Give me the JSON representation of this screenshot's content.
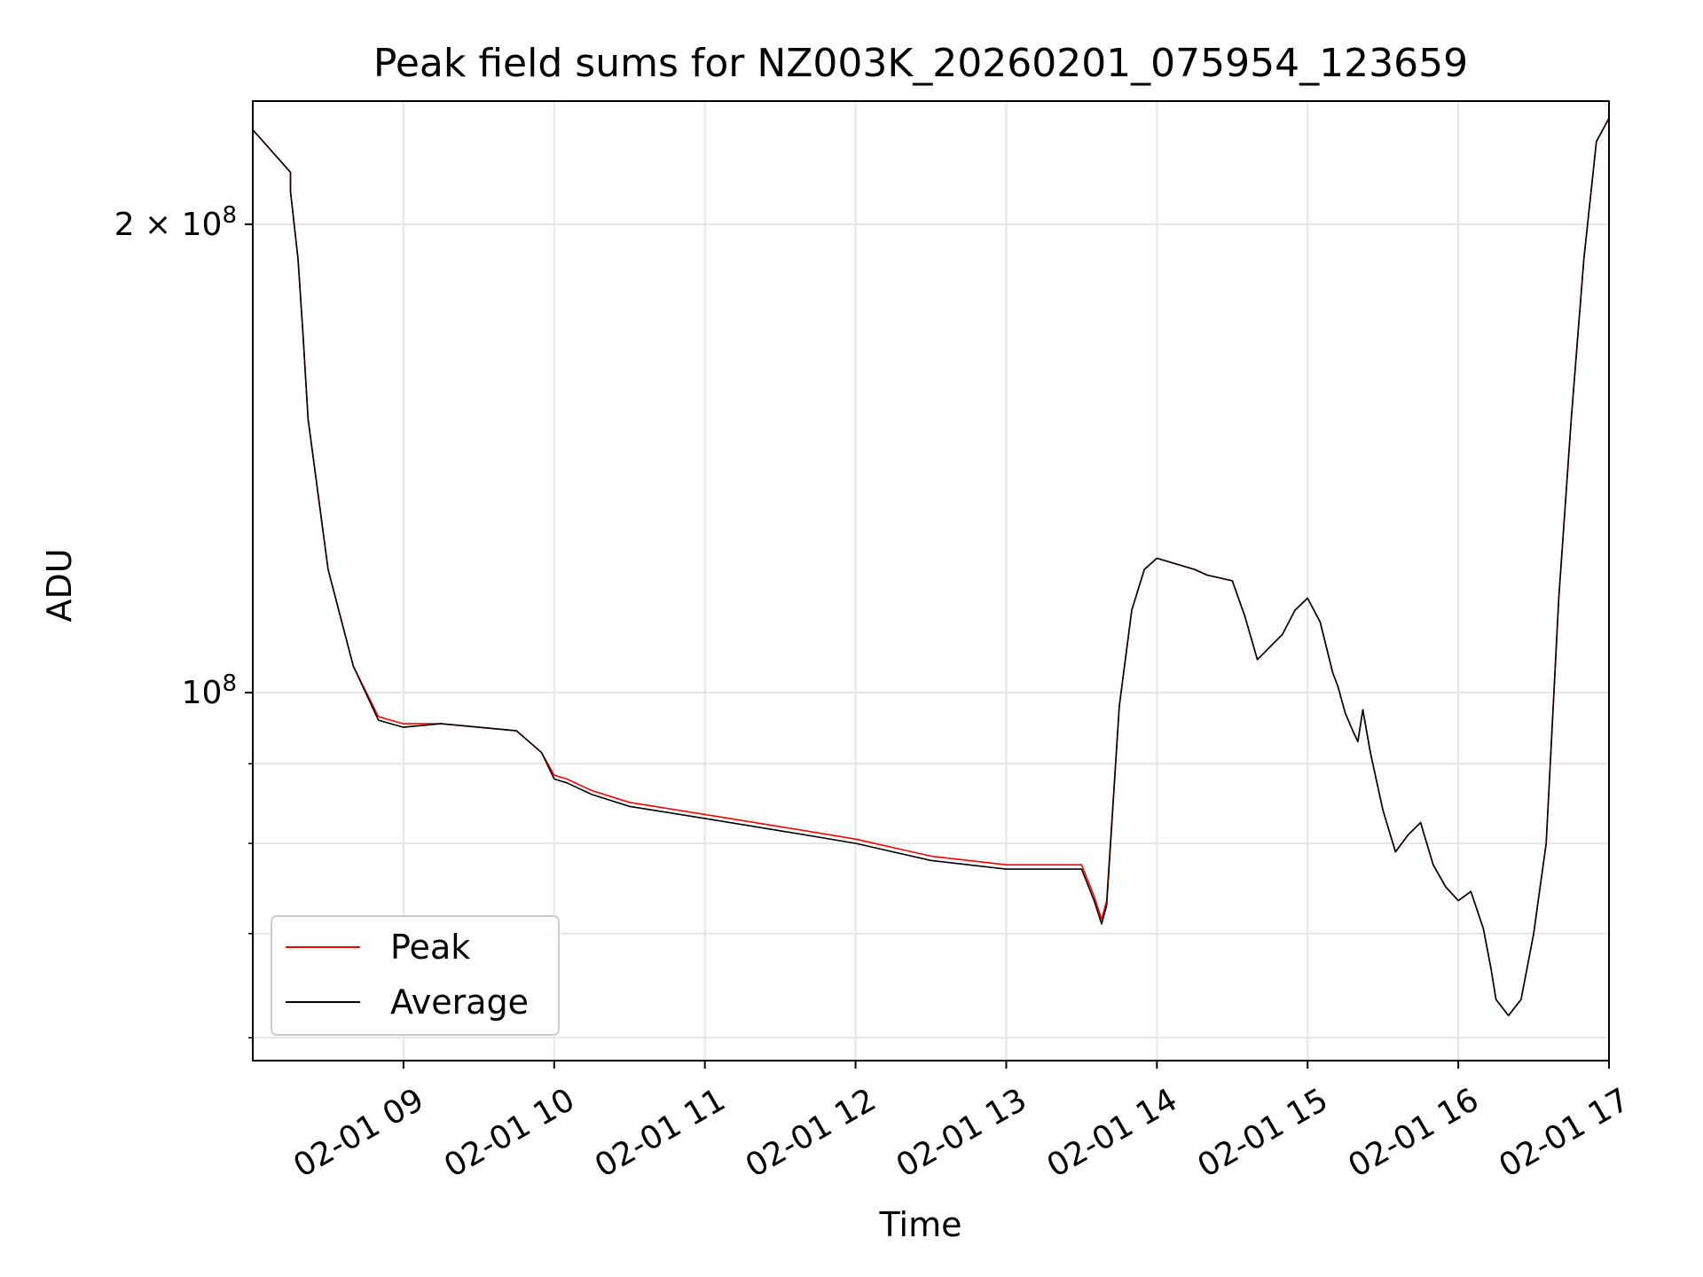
{
  "chart_data": {
    "type": "line",
    "title": "Peak field sums for NZ003K_20260201_075954_123659",
    "xlabel": "Time",
    "ylabel": "ADU",
    "yscale": "log",
    "grid": true,
    "legend_position": "lower-left",
    "xlim": [
      "2026-02-01 08:00",
      "2026-02-01 17:00"
    ],
    "ylim": [
      58000000,
      240000000
    ],
    "x_ticks": [
      "02-01 09",
      "02-01 10",
      "02-01 11",
      "02-01 12",
      "02-01 13",
      "02-01 14",
      "02-01 15",
      "02-01 16",
      "02-01 17"
    ],
    "y_ticks": [
      {
        "value": 200000000,
        "label": "2 × 10^8",
        "base": "2 × 10",
        "exp": "8"
      },
      {
        "value": 100000000,
        "label": "10^8",
        "base": "10",
        "exp": "8"
      }
    ],
    "x": [
      "08:00",
      "08:15",
      "08:15",
      "08:18",
      "08:20",
      "08:22",
      "08:30",
      "08:40",
      "08:50",
      "08:55",
      "09:00",
      "09:15",
      "09:30",
      "09:45",
      "09:50",
      "09:55",
      "10:00",
      "10:05",
      "10:15",
      "10:30",
      "11:00",
      "11:30",
      "12:00",
      "12:30",
      "13:00",
      "13:10",
      "13:30",
      "13:35",
      "13:38",
      "13:40",
      "13:45",
      "13:50",
      "13:55",
      "14:00",
      "14:15",
      "14:20",
      "14:30",
      "14:35",
      "14:40",
      "14:45",
      "14:50",
      "14:55",
      "15:00",
      "15:05",
      "15:10",
      "15:12",
      "15:15",
      "15:18",
      "15:20",
      "15:22",
      "15:25",
      "15:30",
      "15:35",
      "15:40",
      "15:45",
      "15:50",
      "15:55",
      "16:00",
      "16:05",
      "16:10",
      "16:13",
      "16:15",
      "16:20",
      "16:25",
      "16:30",
      "16:35",
      "16:40",
      "16:45",
      "16:50",
      "16:55",
      "17:00"
    ],
    "series": [
      {
        "name": "Peak",
        "color": "#ff0000",
        "values": [
          230000000,
          216000000,
          210000000,
          190000000,
          170000000,
          150000000,
          120000000,
          104000000,
          96500000,
          96000000,
          95500000,
          95500000,
          95000000,
          94500000,
          93000000,
          91500000,
          88500000,
          88000000,
          86500000,
          85000000,
          83500000,
          82000000,
          80500000,
          78500000,
          77500000,
          77500000,
          77500000,
          74000000,
          71500000,
          73500000,
          98000000,
          113000000,
          120000000,
          122000000,
          120000000,
          119000000,
          118000000,
          112000000,
          105000000,
          107000000,
          109000000,
          113000000,
          115000000,
          111000000,
          103000000,
          101000000,
          97000000,
          94500000,
          93000000,
          97500000,
          91500000,
          84000000,
          79000000,
          81000000,
          82500000,
          77500000,
          75000000,
          73500000,
          74500000,
          70500000,
          66500000,
          63500000,
          62000000,
          63500000,
          70000000,
          80000000,
          115000000,
          150000000,
          190000000,
          226000000,
          234000000
        ]
      },
      {
        "name": "Average",
        "color": "#000000",
        "values": [
          230000000,
          216000000,
          210000000,
          190000000,
          170000000,
          150000000,
          120000000,
          104000000,
          96000000,
          95500000,
          95000000,
          95500000,
          95000000,
          94500000,
          93000000,
          91500000,
          88000000,
          87500000,
          86000000,
          84500000,
          83000000,
          81500000,
          80000000,
          78000000,
          77000000,
          77000000,
          77000000,
          73500000,
          71000000,
          73000000,
          98000000,
          113000000,
          120000000,
          122000000,
          120000000,
          119000000,
          118000000,
          112000000,
          105000000,
          107000000,
          109000000,
          113000000,
          115000000,
          111000000,
          103000000,
          101000000,
          97000000,
          94500000,
          93000000,
          97500000,
          91500000,
          84000000,
          79000000,
          81000000,
          82500000,
          77500000,
          75000000,
          73500000,
          74500000,
          70500000,
          66500000,
          63500000,
          62000000,
          63500000,
          70000000,
          80000000,
          115000000,
          150000000,
          190000000,
          226000000,
          234000000
        ]
      }
    ]
  }
}
